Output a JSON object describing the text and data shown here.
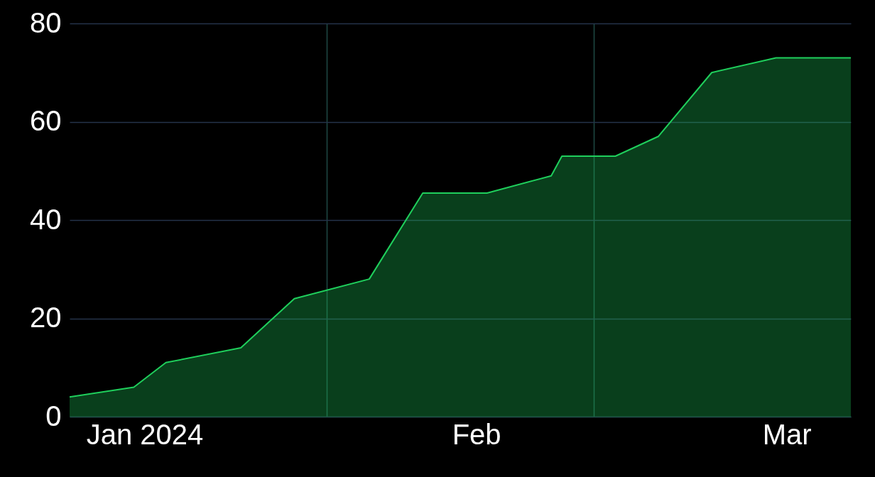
{
  "chart_data": {
    "type": "area",
    "x": [
      "2023-12-25",
      "2023-12-31",
      "2024-01-03",
      "2024-01-10",
      "2024-01-15",
      "2024-01-22",
      "2024-01-24",
      "2024-01-27",
      "2024-02-02",
      "2024-02-08",
      "2024-02-09",
      "2024-02-14",
      "2024-02-18",
      "2024-02-23",
      "2024-02-29",
      "2024-03-07"
    ],
    "series": [
      {
        "color": "#1fcf5c",
        "values": [
          4,
          6,
          11,
          14,
          24,
          28,
          35,
          45.5,
          45.5,
          49,
          53,
          53,
          57,
          70,
          73,
          73
        ]
      }
    ],
    "xlim": [
      "2023-12-25",
      "2024-03-07"
    ],
    "xticks": [
      {
        "value": "2024-01-01",
        "label": "Jan 2024"
      },
      {
        "value": "2024-01-18",
        "label": null
      },
      {
        "value": "2024-02-01",
        "label": "Feb"
      },
      {
        "value": "2024-02-12",
        "label": null
      },
      {
        "value": "2024-03-01",
        "label": "Mar"
      }
    ],
    "ylim": [
      0,
      80
    ],
    "yticks": [
      0,
      20,
      40,
      60,
      80
    ],
    "grid": true
  }
}
